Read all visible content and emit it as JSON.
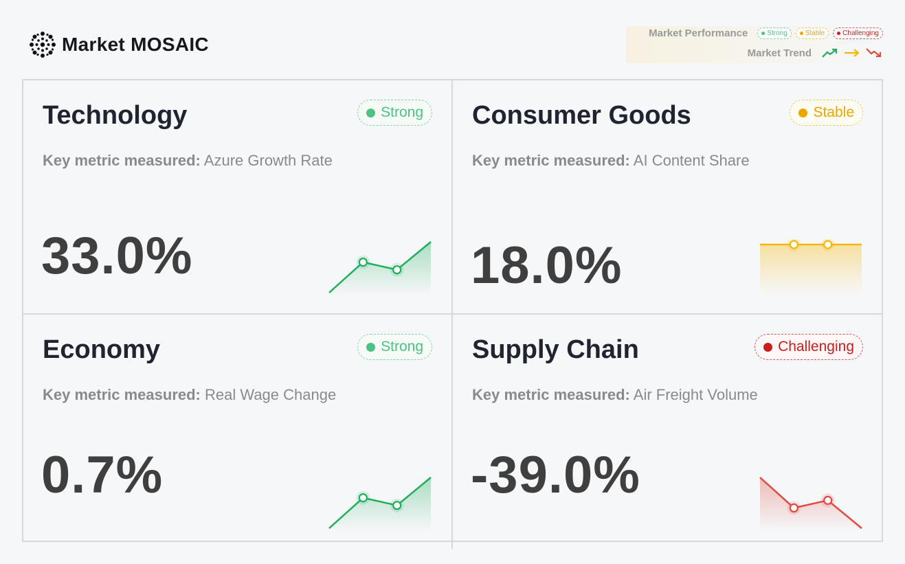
{
  "brand": {
    "name": "Market MOSAIC"
  },
  "legend": {
    "performance_label": "Market Performance",
    "trend_label": "Market Trend",
    "badges": [
      {
        "label": "Strong",
        "status": "strong"
      },
      {
        "label": "Stable",
        "status": "stable"
      },
      {
        "label": "Challenging",
        "status": "challenging"
      }
    ],
    "trend_icons": [
      "trend-up-icon",
      "trend-flat-icon",
      "trend-down-icon"
    ]
  },
  "colors": {
    "strong": "#4cc383",
    "stable": "#f0a400",
    "challenging": "#c81e1e",
    "spark_up": "#1fae5b",
    "spark_flat": "#f5b800",
    "spark_down": "#e2483d"
  },
  "metric_prefix": "Key metric measured:",
  "cards": [
    {
      "title": "Technology",
      "status": "strong",
      "badge": "Strong",
      "metric": "Azure Growth Rate",
      "value": "33.0%",
      "trend": "up",
      "spark": [
        0,
        0.6,
        0.45,
        1
      ]
    },
    {
      "title": "Consumer Goods",
      "status": "stable",
      "badge": "Stable",
      "metric": "AI Content Share",
      "value": "18.0%",
      "trend": "flat",
      "spark": [
        0.5,
        0.5,
        0.5,
        0.5
      ]
    },
    {
      "title": "Economy",
      "status": "strong",
      "badge": "Strong",
      "metric": "Real Wage Change",
      "value": "0.7%",
      "trend": "up",
      "spark": [
        0,
        0.6,
        0.45,
        1
      ]
    },
    {
      "title": "Supply Chain",
      "status": "challenging",
      "badge": "Challenging",
      "metric": "Air Freight Volume",
      "value": "-39.0%",
      "trend": "down",
      "spark": [
        1,
        0.4,
        0.55,
        0
      ]
    }
  ]
}
